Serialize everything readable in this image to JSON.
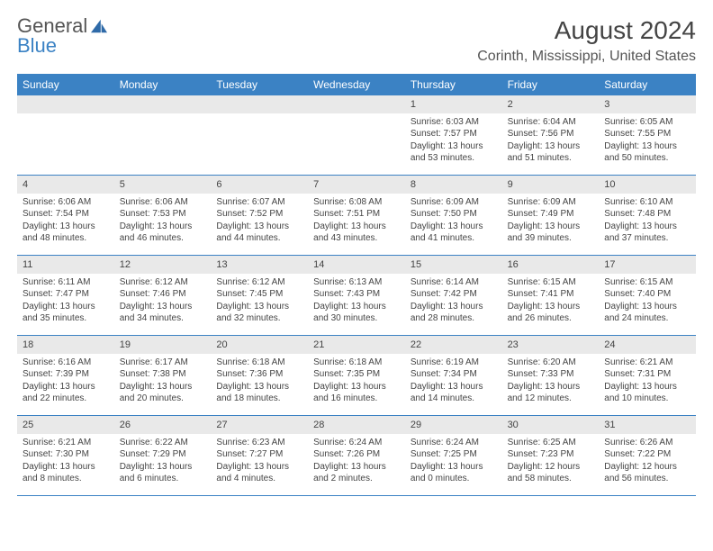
{
  "brand": {
    "word1": "General",
    "word2": "Blue",
    "icon_fill": "#2f6aa8"
  },
  "title": {
    "month_year": "August 2024",
    "location": "Corinth, Mississippi, United States"
  },
  "colors": {
    "header_bg": "#3b82c4",
    "header_text": "#ffffff",
    "daynum_bg": "#e9e9e9",
    "border": "#3b82c4",
    "body_text": "#444444",
    "page_bg": "#ffffff"
  },
  "day_labels": [
    "Sunday",
    "Monday",
    "Tuesday",
    "Wednesday",
    "Thursday",
    "Friday",
    "Saturday"
  ],
  "weeks": [
    [
      null,
      null,
      null,
      null,
      {
        "n": "1",
        "sunrise": "Sunrise: 6:03 AM",
        "sunset": "Sunset: 7:57 PM",
        "daylight": "Daylight: 13 hours and 53 minutes."
      },
      {
        "n": "2",
        "sunrise": "Sunrise: 6:04 AM",
        "sunset": "Sunset: 7:56 PM",
        "daylight": "Daylight: 13 hours and 51 minutes."
      },
      {
        "n": "3",
        "sunrise": "Sunrise: 6:05 AM",
        "sunset": "Sunset: 7:55 PM",
        "daylight": "Daylight: 13 hours and 50 minutes."
      }
    ],
    [
      {
        "n": "4",
        "sunrise": "Sunrise: 6:06 AM",
        "sunset": "Sunset: 7:54 PM",
        "daylight": "Daylight: 13 hours and 48 minutes."
      },
      {
        "n": "5",
        "sunrise": "Sunrise: 6:06 AM",
        "sunset": "Sunset: 7:53 PM",
        "daylight": "Daylight: 13 hours and 46 minutes."
      },
      {
        "n": "6",
        "sunrise": "Sunrise: 6:07 AM",
        "sunset": "Sunset: 7:52 PM",
        "daylight": "Daylight: 13 hours and 44 minutes."
      },
      {
        "n": "7",
        "sunrise": "Sunrise: 6:08 AM",
        "sunset": "Sunset: 7:51 PM",
        "daylight": "Daylight: 13 hours and 43 minutes."
      },
      {
        "n": "8",
        "sunrise": "Sunrise: 6:09 AM",
        "sunset": "Sunset: 7:50 PM",
        "daylight": "Daylight: 13 hours and 41 minutes."
      },
      {
        "n": "9",
        "sunrise": "Sunrise: 6:09 AM",
        "sunset": "Sunset: 7:49 PM",
        "daylight": "Daylight: 13 hours and 39 minutes."
      },
      {
        "n": "10",
        "sunrise": "Sunrise: 6:10 AM",
        "sunset": "Sunset: 7:48 PM",
        "daylight": "Daylight: 13 hours and 37 minutes."
      }
    ],
    [
      {
        "n": "11",
        "sunrise": "Sunrise: 6:11 AM",
        "sunset": "Sunset: 7:47 PM",
        "daylight": "Daylight: 13 hours and 35 minutes."
      },
      {
        "n": "12",
        "sunrise": "Sunrise: 6:12 AM",
        "sunset": "Sunset: 7:46 PM",
        "daylight": "Daylight: 13 hours and 34 minutes."
      },
      {
        "n": "13",
        "sunrise": "Sunrise: 6:12 AM",
        "sunset": "Sunset: 7:45 PM",
        "daylight": "Daylight: 13 hours and 32 minutes."
      },
      {
        "n": "14",
        "sunrise": "Sunrise: 6:13 AM",
        "sunset": "Sunset: 7:43 PM",
        "daylight": "Daylight: 13 hours and 30 minutes."
      },
      {
        "n": "15",
        "sunrise": "Sunrise: 6:14 AM",
        "sunset": "Sunset: 7:42 PM",
        "daylight": "Daylight: 13 hours and 28 minutes."
      },
      {
        "n": "16",
        "sunrise": "Sunrise: 6:15 AM",
        "sunset": "Sunset: 7:41 PM",
        "daylight": "Daylight: 13 hours and 26 minutes."
      },
      {
        "n": "17",
        "sunrise": "Sunrise: 6:15 AM",
        "sunset": "Sunset: 7:40 PM",
        "daylight": "Daylight: 13 hours and 24 minutes."
      }
    ],
    [
      {
        "n": "18",
        "sunrise": "Sunrise: 6:16 AM",
        "sunset": "Sunset: 7:39 PM",
        "daylight": "Daylight: 13 hours and 22 minutes."
      },
      {
        "n": "19",
        "sunrise": "Sunrise: 6:17 AM",
        "sunset": "Sunset: 7:38 PM",
        "daylight": "Daylight: 13 hours and 20 minutes."
      },
      {
        "n": "20",
        "sunrise": "Sunrise: 6:18 AM",
        "sunset": "Sunset: 7:36 PM",
        "daylight": "Daylight: 13 hours and 18 minutes."
      },
      {
        "n": "21",
        "sunrise": "Sunrise: 6:18 AM",
        "sunset": "Sunset: 7:35 PM",
        "daylight": "Daylight: 13 hours and 16 minutes."
      },
      {
        "n": "22",
        "sunrise": "Sunrise: 6:19 AM",
        "sunset": "Sunset: 7:34 PM",
        "daylight": "Daylight: 13 hours and 14 minutes."
      },
      {
        "n": "23",
        "sunrise": "Sunrise: 6:20 AM",
        "sunset": "Sunset: 7:33 PM",
        "daylight": "Daylight: 13 hours and 12 minutes."
      },
      {
        "n": "24",
        "sunrise": "Sunrise: 6:21 AM",
        "sunset": "Sunset: 7:31 PM",
        "daylight": "Daylight: 13 hours and 10 minutes."
      }
    ],
    [
      {
        "n": "25",
        "sunrise": "Sunrise: 6:21 AM",
        "sunset": "Sunset: 7:30 PM",
        "daylight": "Daylight: 13 hours and 8 minutes."
      },
      {
        "n": "26",
        "sunrise": "Sunrise: 6:22 AM",
        "sunset": "Sunset: 7:29 PM",
        "daylight": "Daylight: 13 hours and 6 minutes."
      },
      {
        "n": "27",
        "sunrise": "Sunrise: 6:23 AM",
        "sunset": "Sunset: 7:27 PM",
        "daylight": "Daylight: 13 hours and 4 minutes."
      },
      {
        "n": "28",
        "sunrise": "Sunrise: 6:24 AM",
        "sunset": "Sunset: 7:26 PM",
        "daylight": "Daylight: 13 hours and 2 minutes."
      },
      {
        "n": "29",
        "sunrise": "Sunrise: 6:24 AM",
        "sunset": "Sunset: 7:25 PM",
        "daylight": "Daylight: 13 hours and 0 minutes."
      },
      {
        "n": "30",
        "sunrise": "Sunrise: 6:25 AM",
        "sunset": "Sunset: 7:23 PM",
        "daylight": "Daylight: 12 hours and 58 minutes."
      },
      {
        "n": "31",
        "sunrise": "Sunrise: 6:26 AM",
        "sunset": "Sunset: 7:22 PM",
        "daylight": "Daylight: 12 hours and 56 minutes."
      }
    ]
  ]
}
